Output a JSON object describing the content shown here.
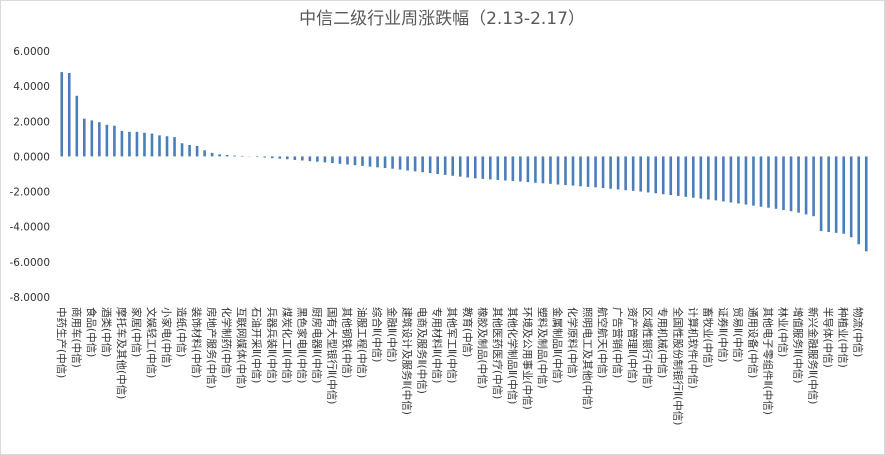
{
  "chart_data": {
    "type": "bar",
    "title": "中信二级行业周涨跌幅（2.13-2.17）",
    "categories": [
      "中药生产(中信)",
      null,
      "商用车(中信)",
      null,
      "食品(中信)",
      null,
      "酒类(中信)",
      null,
      "摩托车及其他(中信)",
      null,
      "家居(中信)",
      null,
      "文娱轻工(中信)",
      null,
      "小家电(中信)",
      null,
      "造纸(中信)",
      null,
      "装饰材料(中信)",
      null,
      "房地产服务(中信)",
      null,
      "化学制药(中信)",
      null,
      "互联网媒体(中信)",
      null,
      "石油开采Ⅱ(中信)",
      null,
      "兵器兵装Ⅱ(中信)",
      null,
      "煤炭化工Ⅱ(中信)",
      null,
      "黑色家电Ⅱ(中信)",
      null,
      "厨房电器Ⅱ(中信)",
      null,
      "国有大型银行Ⅱ(中信)",
      null,
      "其他钢铁(中信)",
      null,
      "油服工程(中信)",
      null,
      "综合Ⅱ(中信)",
      null,
      "金融Ⅱ(中信)",
      null,
      "建筑设计及服务Ⅱ(中信)",
      null,
      "电商及服务Ⅱ(中信)",
      null,
      "专用材料Ⅱ(中信)",
      null,
      "其他军工Ⅱ(中信)",
      null,
      "教育(中信)",
      null,
      "橡胶及制品(中信)",
      null,
      "其他医药医疗(中信)",
      null,
      "其他化学制品Ⅱ(中信)",
      null,
      "环境及公用事业(中信)",
      null,
      "塑料及制品(中信)",
      null,
      "金属制品Ⅱ(中信)",
      null,
      "化学原料(中信)",
      null,
      "照明电工及其他(中信)",
      null,
      "航空航天(中信)",
      null,
      "广告营销(中信)",
      null,
      "资产管理Ⅱ(中信)",
      null,
      "区域性银行(中信)",
      null,
      "专用机械(中信)",
      null,
      "全国性股份制银行Ⅱ(中信)",
      null,
      "计算机软件(中信)",
      null,
      "畜牧业(中信)",
      null,
      "证券Ⅱ(中信)",
      null,
      "贸易Ⅱ(中信)",
      null,
      "通用设备(中信)",
      null,
      "其他电子零组件Ⅱ(中信)",
      null,
      "林业(中信)",
      null,
      "增值服务Ⅱ(中信)",
      null,
      "新兴金融服务Ⅱ(中信)",
      null,
      "半导体(中信)",
      null,
      "种植业(中信)",
      null,
      "物流(中信)",
      null
    ],
    "values": [
      4.8,
      4.75,
      3.45,
      2.15,
      2.05,
      1.95,
      1.8,
      1.75,
      1.45,
      1.4,
      1.4,
      1.35,
      1.3,
      1.2,
      1.15,
      1.1,
      0.75,
      0.65,
      0.6,
      0.35,
      0.2,
      0.12,
      0.08,
      0.05,
      0.03,
      0.01,
      -0.03,
      -0.06,
      -0.1,
      -0.13,
      -0.16,
      -0.2,
      -0.23,
      -0.27,
      -0.3,
      -0.34,
      -0.38,
      -0.42,
      -0.46,
      -0.5,
      -0.54,
      -0.58,
      -0.62,
      -0.66,
      -0.7,
      -0.75,
      -0.8,
      -0.85,
      -0.9,
      -0.95,
      -1.0,
      -1.05,
      -1.1,
      -1.15,
      -1.2,
      -1.25,
      -1.28,
      -1.31,
      -1.34,
      -1.37,
      -1.4,
      -1.43,
      -1.46,
      -1.5,
      -1.53,
      -1.56,
      -1.6,
      -1.63,
      -1.66,
      -1.7,
      -1.73,
      -1.76,
      -1.8,
      -1.84,
      -1.88,
      -1.92,
      -1.96,
      -2.0,
      -2.05,
      -2.1,
      -2.15,
      -2.2,
      -2.25,
      -2.3,
      -2.35,
      -2.4,
      -2.45,
      -2.5,
      -2.56,
      -2.62,
      -2.68,
      -2.74,
      -2.8,
      -2.86,
      -2.92,
      -2.98,
      -3.05,
      -3.12,
      -3.2,
      -3.3,
      -3.4,
      -4.25,
      -4.3,
      -4.35,
      -4.4,
      -4.6,
      -5.0,
      -5.4
    ],
    "color": "#4a7ebb",
    "ylim": [
      -8,
      6
    ],
    "yticks": [
      {
        "value": 6,
        "label": "6.0000"
      },
      {
        "value": 4,
        "label": "4.0000"
      },
      {
        "value": 2,
        "label": "2.0000"
      },
      {
        "value": 0,
        "label": "0.0000"
      },
      {
        "value": -2,
        "label": "-2.0000"
      },
      {
        "value": -4,
        "label": "-4.0000"
      },
      {
        "value": -6,
        "label": "-6.0000"
      },
      {
        "value": -8,
        "label": "-8.0000"
      }
    ]
  }
}
